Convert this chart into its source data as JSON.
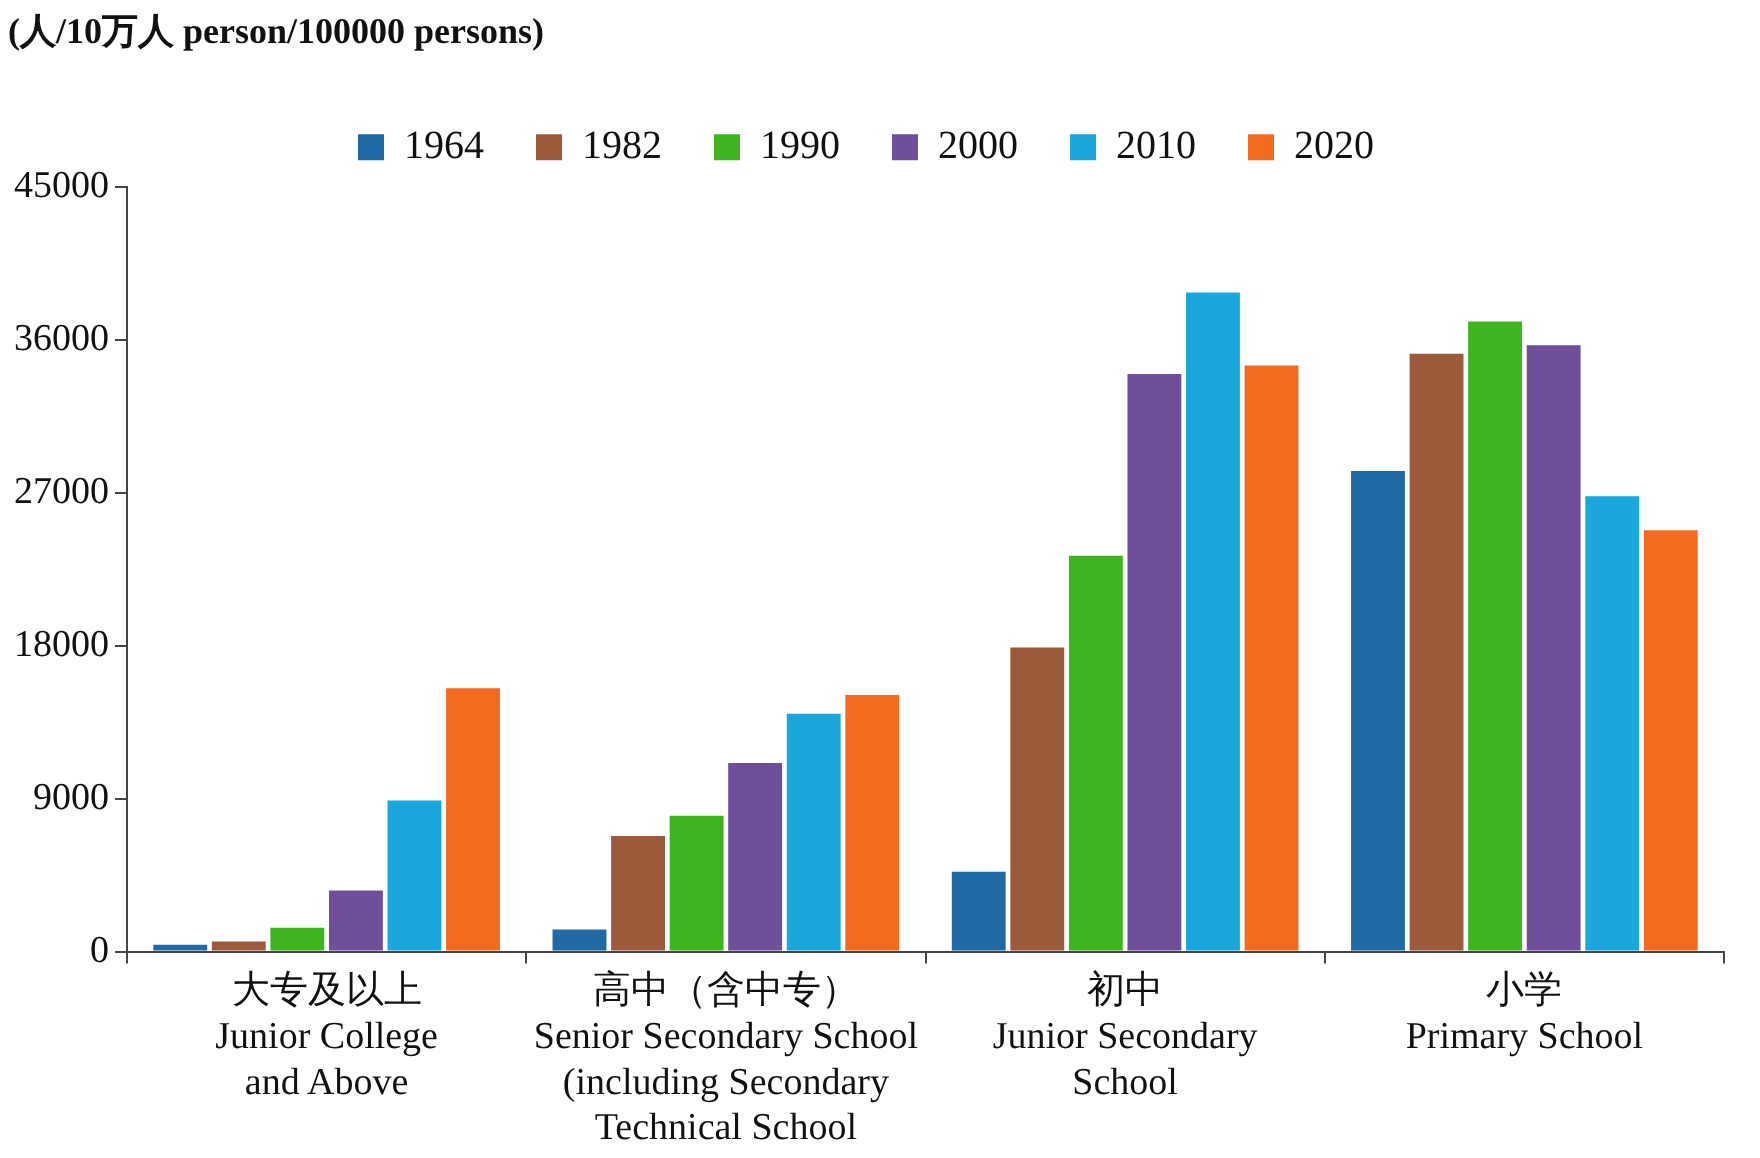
{
  "chart_data": {
    "type": "bar",
    "ylabel": "(人/10万人 person/100000 persons)",
    "categories": [
      "大专及以上\nJunior College\nand Above",
      "高中（含中专）\nSenior Secondary School\n(including Secondary\nTechnical School",
      "初中\nJunior Secondary\nSchool",
      "小学\nPrimary School"
    ],
    "series": [
      {
        "name": "1964",
        "color": "#1f6aa5",
        "values": [
          400,
          1300,
          4700,
          28300
        ]
      },
      {
        "name": "1982",
        "color": "#9c5a3c",
        "values": [
          600,
          6800,
          17900,
          35200
        ]
      },
      {
        "name": "1990",
        "color": "#3cb51f",
        "values": [
          1400,
          8000,
          23300,
          37100
        ]
      },
      {
        "name": "2000",
        "color": "#6f4e9a",
        "values": [
          3600,
          11100,
          34000,
          35700
        ]
      },
      {
        "name": "2010",
        "color": "#1aa7dc",
        "values": [
          8900,
          14000,
          38800,
          26800
        ]
      },
      {
        "name": "2020",
        "color": "#f26b21",
        "values": [
          15500,
          15100,
          34500,
          24800
        ]
      }
    ],
    "ylim": [
      0,
      45000
    ],
    "yticks": [
      0,
      9000,
      18000,
      27000,
      36000,
      45000
    ],
    "grid": false,
    "legend": "top"
  }
}
